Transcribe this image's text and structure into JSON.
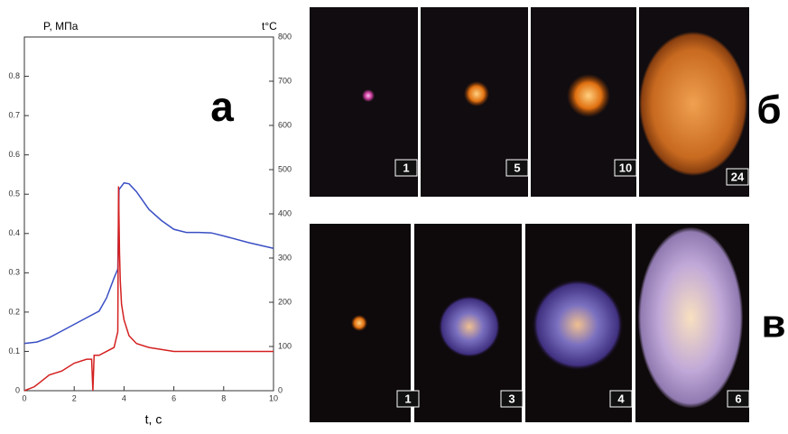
{
  "chart_data": {
    "type": "line",
    "ylabel": "P, МПа",
    "y2label": "t°C",
    "xlabel": "t, c",
    "annotation": "а",
    "xlim": [
      0,
      10
    ],
    "xticks": [
      0,
      2,
      4,
      6,
      8,
      10
    ],
    "ylim": [
      0,
      0.9
    ],
    "yticks": [
      0,
      0.1,
      0.2,
      0.3,
      0.4,
      0.5,
      0.6,
      0.7,
      0.8
    ],
    "y2lim": [
      0,
      800
    ],
    "y2ticks": [
      0,
      100,
      200,
      300,
      400,
      500,
      600,
      700,
      800
    ],
    "series": [
      {
        "color": "#3a4fc4",
        "axis": "y2",
        "x": [
          0,
          0.5,
          1,
          1.5,
          2,
          2.5,
          3,
          3.3,
          3.6,
          3.75,
          3.8,
          4.0,
          4.2,
          4.5,
          5,
          5.5,
          6,
          6.5,
          7,
          7.5,
          8,
          9,
          10
        ],
        "values": [
          107,
          110,
          120,
          135,
          150,
          165,
          180,
          210,
          255,
          275,
          455,
          470,
          468,
          450,
          410,
          385,
          365,
          358,
          358,
          357,
          350,
          335,
          322
        ]
      },
      {
        "color": "#d42020",
        "x": [
          0,
          0.4,
          0.6,
          1,
          1.5,
          2,
          2.5,
          2.7,
          2.75,
          2.8,
          3,
          3.3,
          3.6,
          3.75,
          3.78,
          3.82,
          3.85,
          3.9,
          4.0,
          4.2,
          4.5,
          5,
          6,
          7,
          8,
          9,
          10
        ],
        "values": [
          0,
          0.01,
          0.02,
          0.04,
          0.05,
          0.07,
          0.08,
          0.08,
          0,
          0.09,
          0.09,
          0.1,
          0.11,
          0.15,
          0.52,
          0.35,
          0.28,
          0.22,
          0.18,
          0.14,
          0.12,
          0.11,
          0.1,
          0.1,
          0.1,
          0.1,
          0.1
        ]
      }
    ]
  },
  "panels": [
    {
      "letter": "б",
      "frames": [
        "1",
        "5",
        "10",
        "24"
      ]
    },
    {
      "letter": "в",
      "frames": [
        "1",
        "3",
        "4",
        "6"
      ]
    }
  ]
}
